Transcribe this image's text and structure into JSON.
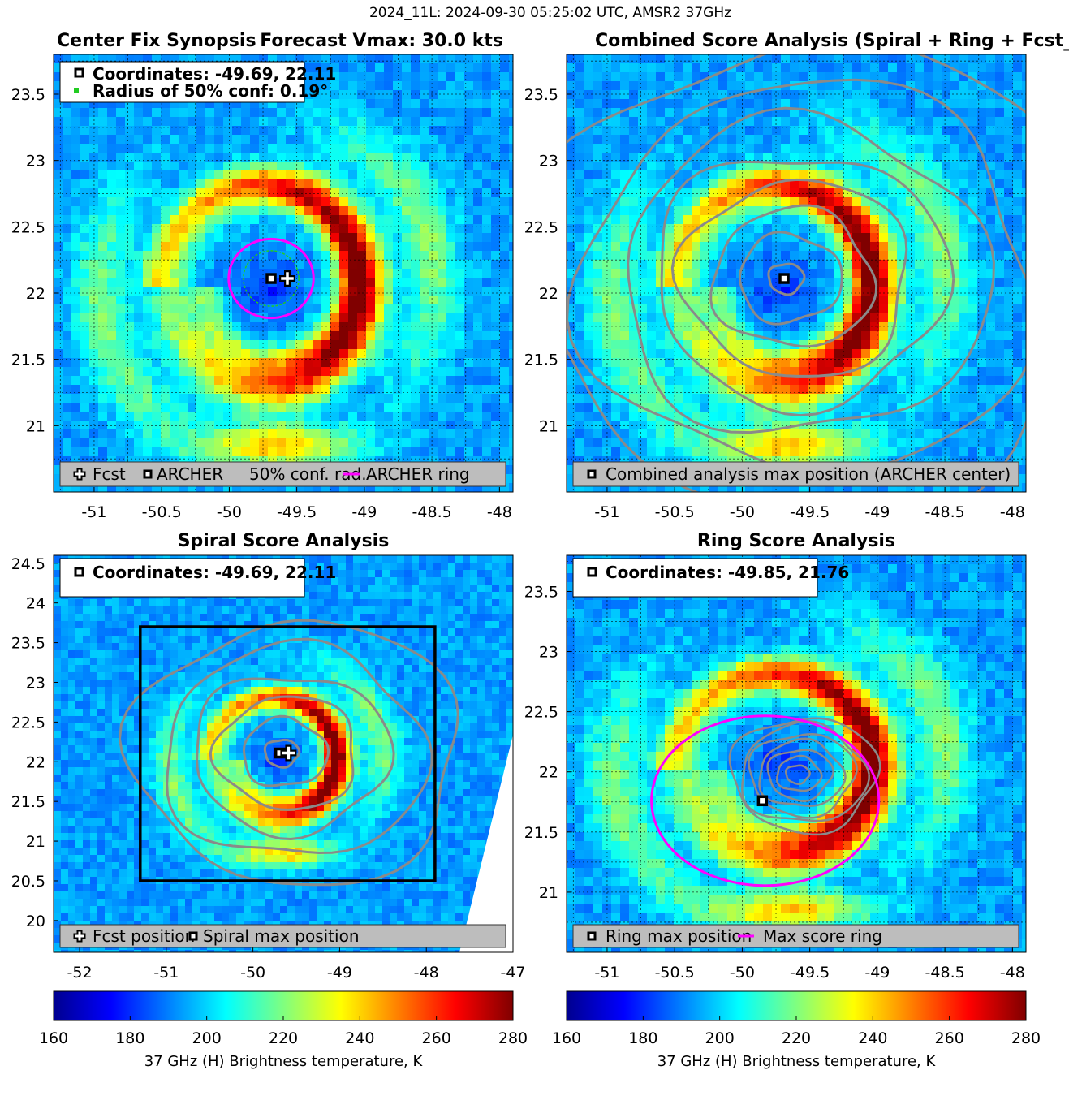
{
  "figure": {
    "suptitle": "2024_11L: 2024-09-30 05:25:02 UTC, AMSR2 37GHz"
  },
  "colors": {
    "ring": "#ff00ff",
    "conf_circle": "#22cc22",
    "contour": "#8a8a8a",
    "legend_bg": "#bdbdbd"
  },
  "chart_data": [
    {
      "id": "synopsis",
      "type": "heatmap",
      "title": "Center Fix Synopsis",
      "title_right": "Forecast Vmax: 30.0 kts",
      "xlim": [
        -51.3,
        -47.9
      ],
      "ylim": [
        20.5,
        23.8
      ],
      "xticks": [
        -51,
        -50.5,
        -50,
        -49.5,
        -49,
        -48.5,
        -48
      ],
      "xtick_labels": [
        "-51",
        "-50.5",
        "-50",
        "-49.5",
        "-49",
        "-48.5",
        "-48"
      ],
      "yticks": [
        21,
        21.5,
        22,
        22.5,
        23,
        23.5
      ],
      "ytick_labels": [
        "21",
        "21.5",
        "22",
        "22.5",
        "23",
        "23.5"
      ],
      "grid": true,
      "info_lines": [
        "Coordinates: -49.69, 22.11",
        "Radius of 50% conf: 0.19°"
      ],
      "legend": [
        "Fcst",
        "ARCHER",
        "50% conf. rad.",
        "ARCHER ring"
      ],
      "center": {
        "x": -49.69,
        "y": 22.11
      },
      "forecast": {
        "x": -49.57,
        "y": 22.11
      },
      "conf_radius_deg": 0.19,
      "ring_radius_deg": 0.32
    },
    {
      "id": "combined",
      "type": "heatmap",
      "title": "Combined Score Analysis (Spiral + Ring + Fcst_Pe",
      "xlim": [
        -51.3,
        -47.9
      ],
      "ylim": [
        20.5,
        23.8
      ],
      "xticks": [
        -51,
        -50.5,
        -50,
        -49.5,
        -49,
        -48.5,
        -48
      ],
      "xtick_labels": [
        "-51",
        "-50.5",
        "-50",
        "-49.5",
        "-49",
        "-48.5",
        "-48"
      ],
      "yticks": [
        21,
        21.5,
        22,
        22.5,
        23,
        23.5
      ],
      "ytick_labels": [
        "21",
        "21.5",
        "22",
        "22.5",
        "23",
        "23.5"
      ],
      "grid": true,
      "legend": [
        "Combined analysis max position (ARCHER center)"
      ],
      "center": {
        "x": -49.69,
        "y": 22.11
      },
      "contour_radii_deg": [
        0.12,
        0.35,
        0.55,
        0.78,
        1.0,
        1.25,
        1.55,
        1.9
      ]
    },
    {
      "id": "spiral",
      "type": "heatmap",
      "title": "Spiral Score Analysis",
      "xlim": [
        -52.3,
        -47.0
      ],
      "ylim": [
        19.6,
        24.6
      ],
      "xticks": [
        -52,
        -51,
        -50,
        -49,
        -48,
        -47
      ],
      "xtick_labels": [
        "-52",
        "-51",
        "-50",
        "-49",
        "-48",
        "-47"
      ],
      "yticks": [
        20,
        20.5,
        21,
        21.5,
        22,
        22.5,
        23,
        23.5,
        24,
        24.5
      ],
      "ytick_labels": [
        "20",
        "20.5",
        "21",
        "21.5",
        "22",
        "22.5",
        "23",
        "23.5",
        "24",
        "24.5"
      ],
      "grid": false,
      "info_lines": [
        "Coordinates: -49.69, 22.11"
      ],
      "legend": [
        "Fcst position",
        "Spiral max position"
      ],
      "center": {
        "x": -49.69,
        "y": 22.11
      },
      "forecast": {
        "x": -49.59,
        "y": 22.11
      },
      "box": {
        "x0": -51.3,
        "x1": -47.9,
        "y0": 20.5,
        "y1": 23.7
      },
      "contour_radii_deg": [
        0.18,
        0.45,
        0.75,
        1.05,
        1.4,
        1.75
      ]
    },
    {
      "id": "ring",
      "type": "heatmap",
      "title": "Ring Score Analysis",
      "xlim": [
        -51.3,
        -47.9
      ],
      "ylim": [
        20.5,
        23.8
      ],
      "xticks": [
        -51,
        -50.5,
        -50,
        -49.5,
        -49,
        -48.5,
        -48
      ],
      "xtick_labels": [
        "-51",
        "-50.5",
        "-50",
        "-49.5",
        "-49",
        "-48.5",
        "-48"
      ],
      "yticks": [
        21,
        21.5,
        22,
        22.5,
        23,
        23.5
      ],
      "ytick_labels": [
        "21",
        "21.5",
        "22",
        "22.5",
        "23",
        "23.5"
      ],
      "grid": true,
      "info_lines": [
        "Coordinates: -49.85, 21.76"
      ],
      "legend": [
        "Ring max position",
        "Max score ring"
      ],
      "center": {
        "x": -49.85,
        "y": 21.76
      },
      "ring_radius_deg": 0.85
    }
  ],
  "colorbars": [
    {
      "id": "cb-left",
      "min": 160,
      "max": 280,
      "ticks": [
        "160",
        "180",
        "200",
        "220",
        "240",
        "260",
        "280"
      ],
      "label": "37 GHz (H) Brightness temperature, K"
    },
    {
      "id": "cb-right",
      "min": 160,
      "max": 280,
      "ticks": [
        "160",
        "180",
        "200",
        "220",
        "240",
        "260",
        "280"
      ],
      "label": "37 GHz (H) Brightness temperature, K"
    }
  ]
}
